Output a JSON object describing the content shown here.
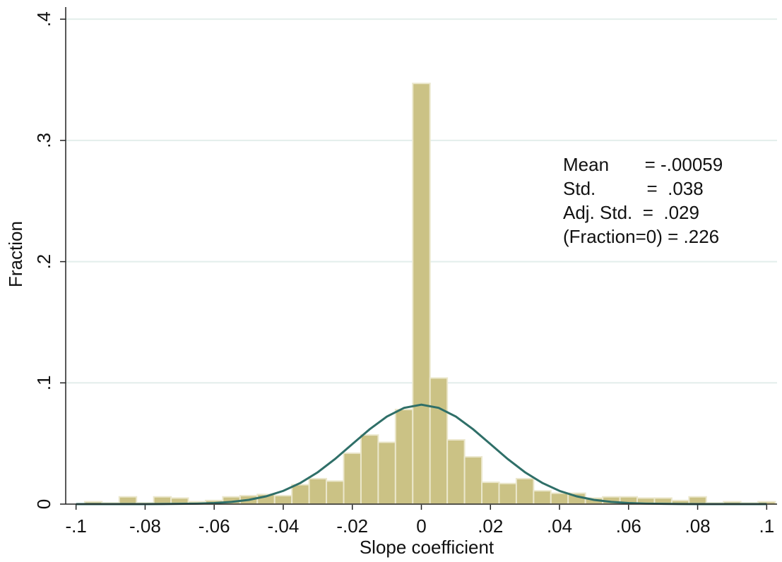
{
  "chart_data": {
    "type": "histogram",
    "x_label": "Slope coefficient",
    "y_label": "Fraction",
    "bins": [
      -0.0975,
      -0.0925,
      -0.0875,
      -0.0825,
      -0.0775,
      -0.0725,
      -0.0675,
      -0.0625,
      -0.0575,
      -0.0525,
      -0.0475,
      -0.0425,
      -0.0375,
      -0.0325,
      -0.0275,
      -0.0225,
      -0.0175,
      -0.0125,
      -0.0075,
      -0.0025,
      0.0025,
      0.0075,
      0.0125,
      0.0175,
      0.0225,
      0.0275,
      0.0325,
      0.0375,
      0.0425,
      0.0475,
      0.0525,
      0.0575,
      0.0625,
      0.0675,
      0.0725,
      0.0775,
      0.0825,
      0.0875,
      0.0925,
      0.0975,
      0.1025
    ],
    "values": [
      0.002,
      0.001,
      0.006,
      0.001,
      0.006,
      0.005,
      0.002,
      0.003,
      0.006,
      0.007,
      0.008,
      0.007,
      0.016,
      0.021,
      0.019,
      0.042,
      0.057,
      0.051,
      0.078,
      0.347,
      0.104,
      0.053,
      0.039,
      0.018,
      0.017,
      0.021,
      0.011,
      0.009,
      0.009,
      0.005,
      0.006,
      0.006,
      0.005,
      0.005,
      0.003,
      0.006,
      0.001,
      0.002,
      0.001,
      0.002
    ],
    "color": "#cbc285",
    "curve": {
      "color": "#2f6f68",
      "x": [
        -0.1,
        -0.095,
        -0.09,
        -0.085,
        -0.08,
        -0.075,
        -0.07,
        -0.065,
        -0.06,
        -0.055,
        -0.05,
        -0.045,
        -0.04,
        -0.035,
        -0.03,
        -0.025,
        -0.02,
        -0.015,
        -0.01,
        -0.005,
        0,
        0.005,
        0.01,
        0.015,
        0.02,
        0.025,
        0.03,
        0.035,
        0.04,
        0.045,
        0.05,
        0.055,
        0.06,
        0.065,
        0.07,
        0.075,
        0.08,
        0.085,
        0.09,
        0.095,
        0.1
      ],
      "values": [
        0,
        0,
        0,
        0,
        0,
        0.0001,
        0.0002,
        0.0004,
        0.0009,
        0.0018,
        0.0035,
        0.0064,
        0.0109,
        0.0175,
        0.0263,
        0.0372,
        0.0495,
        0.0617,
        0.0722,
        0.0794,
        0.082,
        0.0794,
        0.0722,
        0.0617,
        0.0495,
        0.0372,
        0.0263,
        0.0175,
        0.0109,
        0.0064,
        0.0035,
        0.0018,
        0.0009,
        0.0004,
        0.0002,
        0.0001,
        0,
        0,
        0,
        0,
        0
      ]
    },
    "annotations": [
      "Mean       = -.00059",
      "Std.          =  .038",
      "Adj. Std.  =  .029",
      "(Fraction=0) = .226"
    ],
    "xlim": [
      -0.103,
      0.103
    ],
    "ylim": [
      0,
      0.41
    ],
    "xticks": [
      {
        "value": -0.1,
        "label": "-.1"
      },
      {
        "value": -0.08,
        "label": "-.08"
      },
      {
        "value": -0.06,
        "label": "-.06"
      },
      {
        "value": -0.04,
        "label": "-.04"
      },
      {
        "value": -0.02,
        "label": "-.02"
      },
      0,
      {
        "value": 0.02,
        "label": ".02"
      },
      {
        "value": 0.04,
        "label": ".04"
      },
      {
        "value": 0.06,
        "label": ".06"
      },
      {
        "value": 0.08,
        "label": ".08"
      },
      {
        "value": 0.1,
        "label": ".1"
      }
    ],
    "yticks": [
      0,
      {
        "value": 0.1,
        "label": ".1"
      },
      {
        "value": 0.2,
        "label": ".2"
      },
      {
        "value": 0.3,
        "label": ".3"
      },
      {
        "value": 0.4,
        "label": ".4"
      }
    ],
    "grid": true
  }
}
